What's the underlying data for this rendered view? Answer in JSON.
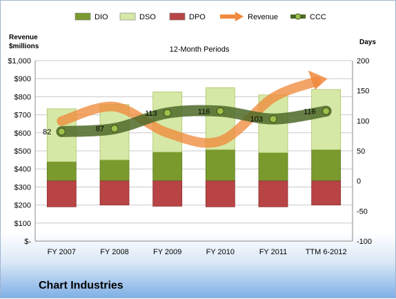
{
  "company_name": "Chart Industries",
  "colors": {
    "DIO": "#7a9a2e",
    "DSO": "#d6e8a6",
    "DPO": "#b84446",
    "Revenue": "#f08a3c",
    "CCC": "#4e6a28"
  },
  "chart_data": {
    "type": "bar",
    "title": "12-Month Periods",
    "categories": [
      "FY 2007",
      "FY 2008",
      "FY 2009",
      "FY 2010",
      "FY 2011",
      "TTM 6-2012"
    ],
    "y_left": {
      "label_line1": "Revenue",
      "label_line2": "$millions",
      "range": [
        0,
        1000
      ],
      "ticks": [
        0,
        100,
        200,
        300,
        400,
        500,
        600,
        700,
        800,
        900,
        1000
      ],
      "tick_labels": [
        "$-",
        "$100",
        "$200",
        "$300",
        "$400",
        "$500",
        "$600",
        "$700",
        "$800",
        "$900",
        "$1,000"
      ]
    },
    "y_right": {
      "label": "Days",
      "range": [
        -100,
        200
      ],
      "ticks": [
        -100,
        -50,
        0,
        50,
        100,
        150,
        200
      ],
      "tick_labels": [
        "-100",
        "-50",
        "0",
        "50",
        "100",
        "150",
        "200"
      ]
    },
    "legend": {
      "position": "top",
      "items": [
        "DIO",
        "DSO",
        "DPO",
        "Revenue",
        "CCC"
      ]
    },
    "series": [
      {
        "name": "DIO",
        "axis": "right",
        "stack": "positive",
        "values": [
          32,
          35,
          48,
          52,
          47,
          52
        ]
      },
      {
        "name": "DSO",
        "axis": "right",
        "stack": "positive",
        "values": [
          88,
          92,
          100,
          103,
          96,
          100
        ]
      },
      {
        "name": "DPO",
        "axis": "right",
        "stack": "negative",
        "values": [
          -43,
          -40,
          -42,
          -43,
          -43,
          -40
        ]
      },
      {
        "name": "Revenue",
        "axis": "left",
        "type": "line",
        "values": [
          665,
          745,
          600,
          555,
          795,
          900
        ]
      },
      {
        "name": "CCC",
        "axis": "right",
        "type": "line",
        "values": [
          82,
          87,
          113,
          116,
          103,
          116
        ],
        "labels": [
          "82",
          "87",
          "113",
          "116",
          "103",
          "116"
        ]
      }
    ]
  }
}
